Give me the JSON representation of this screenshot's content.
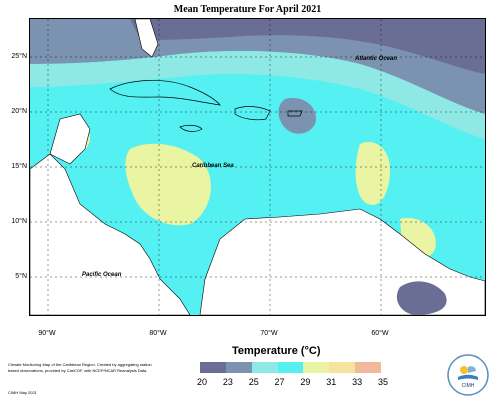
{
  "title": "Mean Temperature For April 2021",
  "lat_labels": [
    "25°N",
    "20°N",
    "15°N",
    "10°N",
    "5°N"
  ],
  "lon_labels": [
    "90°W",
    "80°W",
    "70°W",
    "60°W"
  ],
  "ocean_labels": {
    "atlantic": "Atlantic Ocean",
    "caribbean": "Caribbean Sea",
    "pacific": "Pacific Ocean"
  },
  "legend": {
    "title": "Temperature (°C)",
    "ticks": [
      "20",
      "23",
      "25",
      "27",
      "29",
      "31",
      "33",
      "35"
    ],
    "colors": [
      "#6b6e94",
      "#7b93b0",
      "#8ee8e3",
      "#55f0f2",
      "#eaf5a3",
      "#f6e3a0",
      "#f0b99a"
    ]
  },
  "footer": {
    "description": "Climate Monitoring Map of the Caribbean Region. Created by aggregating station based observations, provided by CariCOF, with NCEP/NCAR Reanalysis Data.",
    "credit": "CIMH May 2021"
  },
  "logo": {
    "text": "CIMH"
  }
}
